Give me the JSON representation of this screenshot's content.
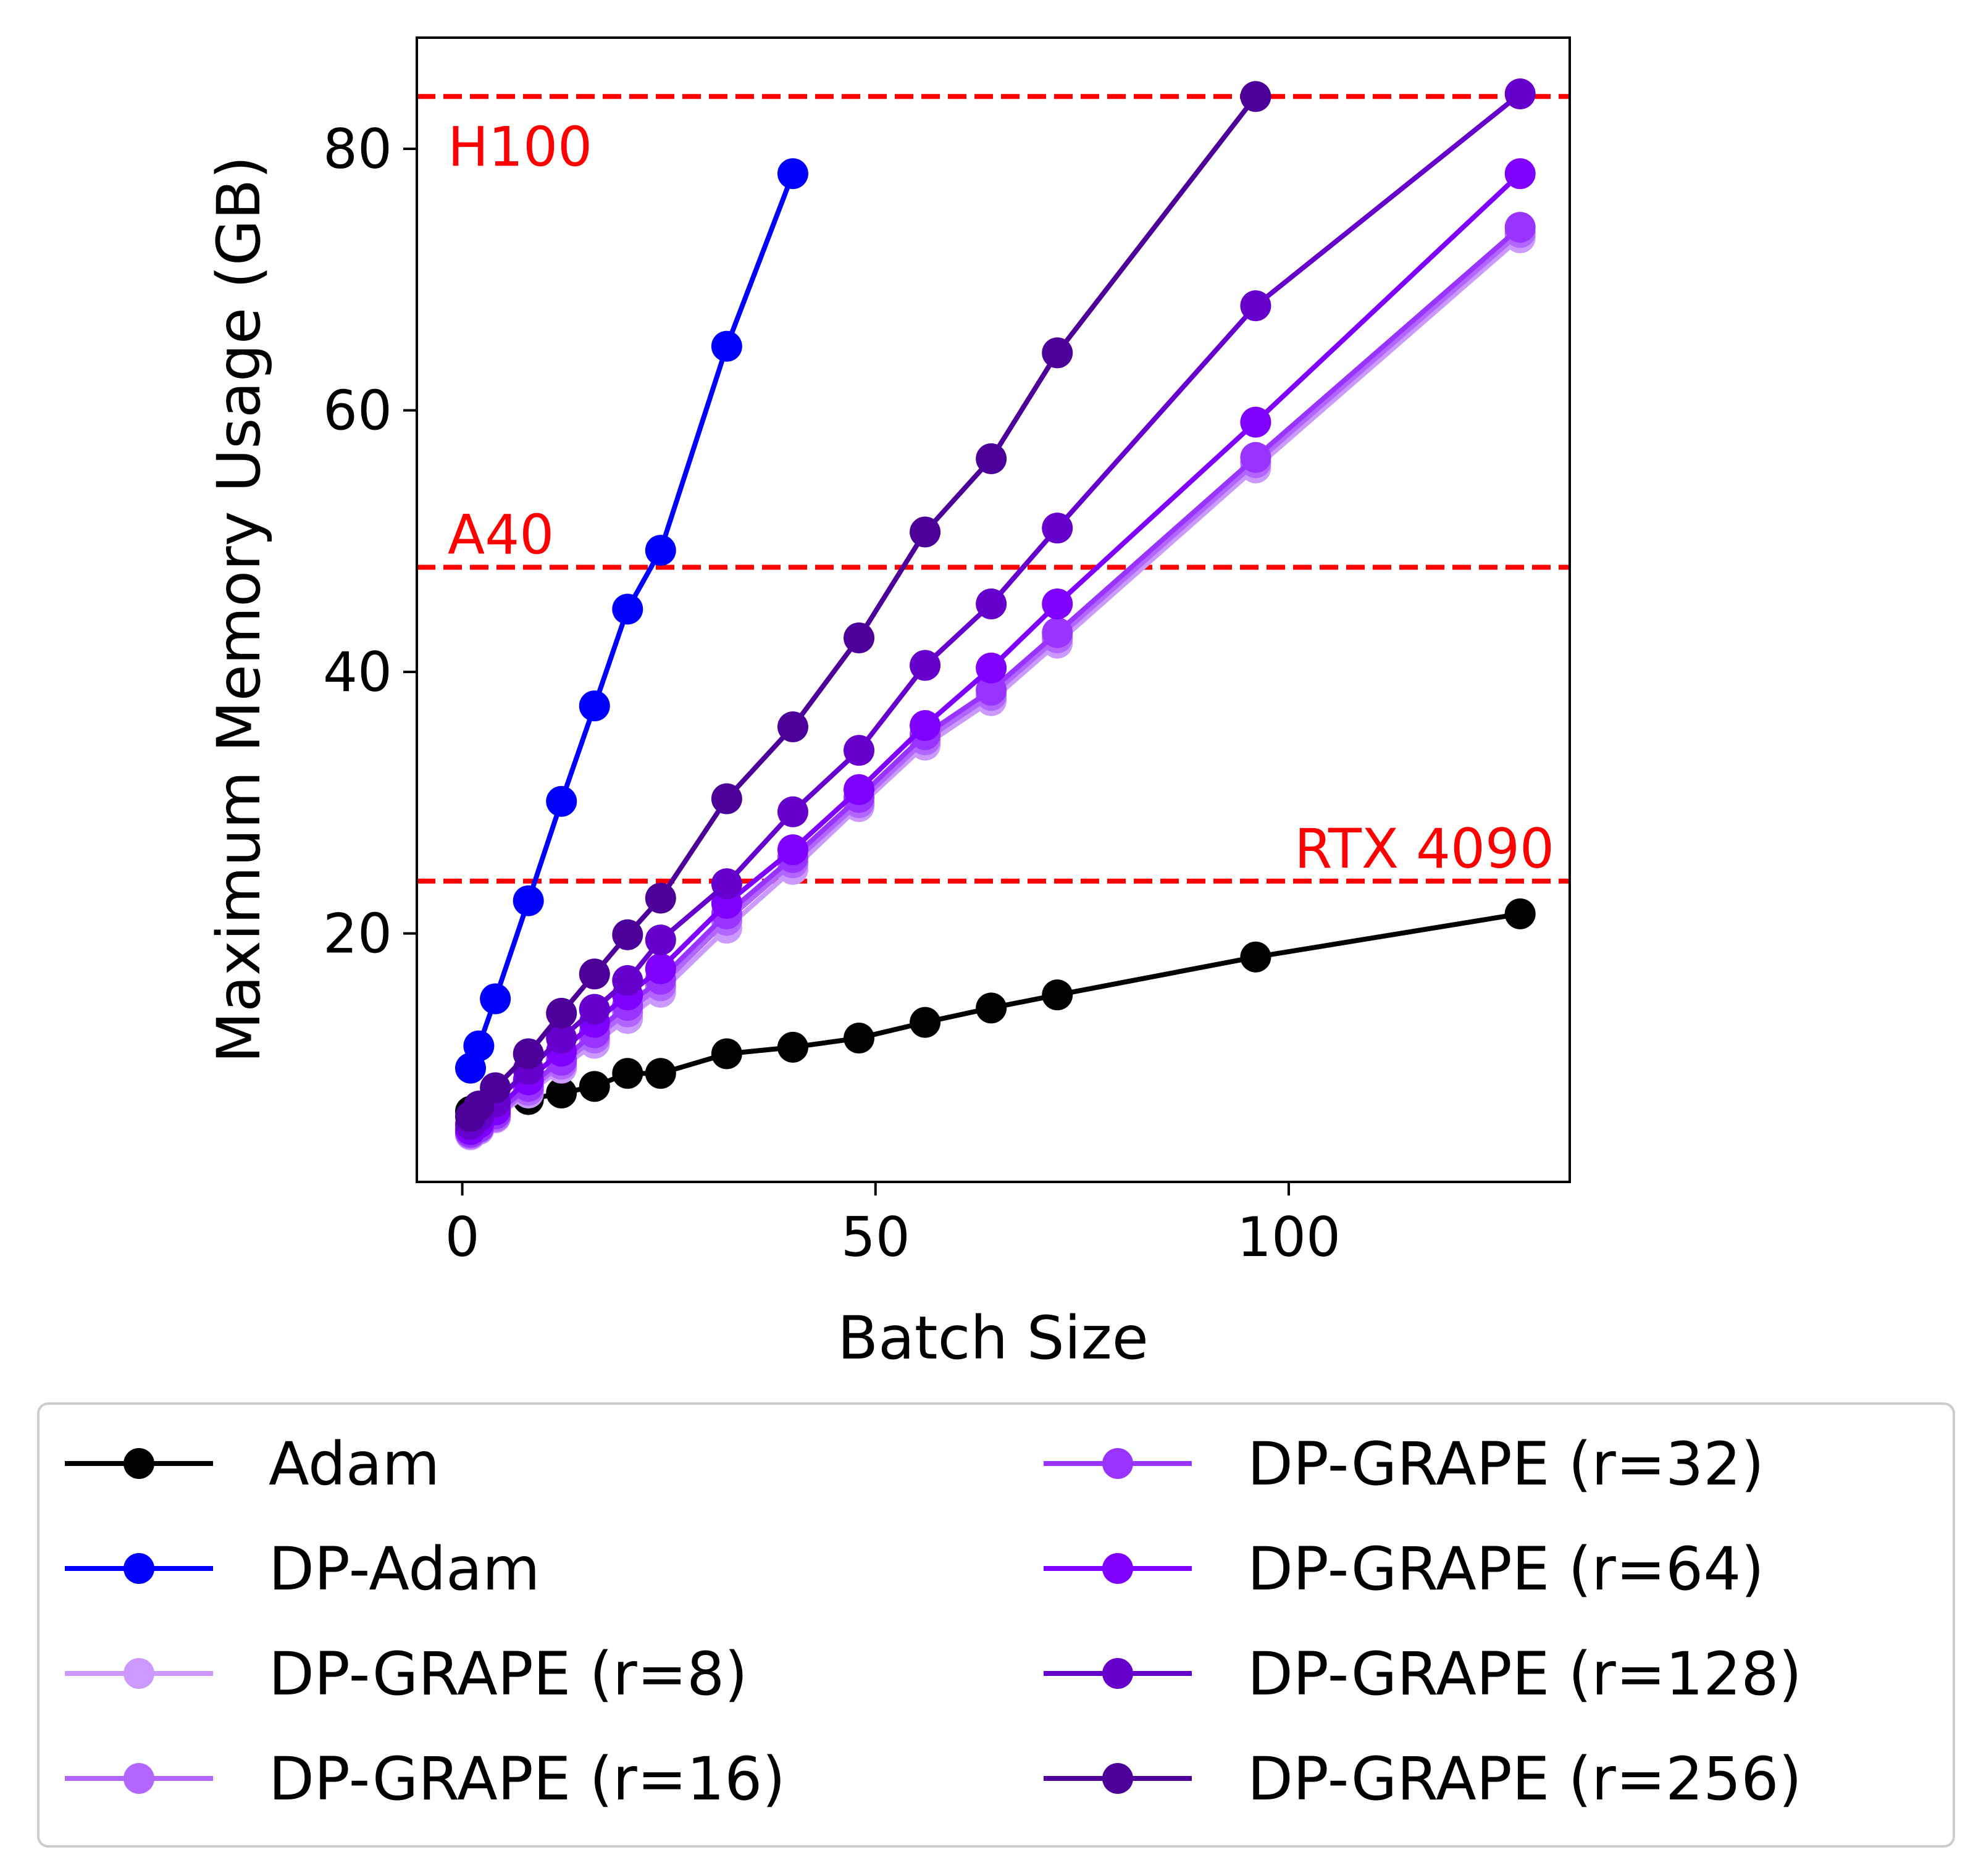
{
  "chart_data": {
    "type": "line",
    "xlabel": "Batch Size",
    "ylabel": "Maximum Memory Usage (GB)",
    "xlim": [
      -5.5,
      134
    ],
    "ylim": [
      1,
      88.5
    ],
    "xticks": [
      0,
      50,
      100
    ],
    "yticks": [
      20,
      40,
      60,
      80
    ],
    "grid": false,
    "legend_position": "below",
    "reference_lines": [
      {
        "label": "H100",
        "y": 84,
        "color": "#ff0000",
        "label_anchor": "left-below"
      },
      {
        "label": "A40",
        "y": 48,
        "color": "#ff0000",
        "label_anchor": "left-above"
      },
      {
        "label": "RTX 4090",
        "y": 24,
        "color": "#ff0000",
        "label_anchor": "right-above"
      }
    ],
    "series": [
      {
        "name": "Adam",
        "color": "#000000",
        "x": [
          1,
          2,
          4,
          8,
          12,
          16,
          20,
          24,
          32,
          40,
          48,
          56,
          64,
          72,
          96,
          128
        ],
        "y": [
          6.4,
          6.6,
          7.0,
          7.3,
          7.8,
          8.3,
          9.3,
          9.3,
          10.8,
          11.3,
          12.0,
          13.2,
          14.3,
          15.3,
          18.2,
          21.5
        ]
      },
      {
        "name": "DP-Adam",
        "color": "#0000ff",
        "x": [
          1,
          2,
          4,
          8,
          12,
          16,
          20,
          24,
          32,
          40
        ],
        "y": [
          9.7,
          11.4,
          15.0,
          22.5,
          30.1,
          37.4,
          44.8,
          49.3,
          64.9,
          78.1
        ]
      },
      {
        "name": "DP-GRAPE (r=8)",
        "color": "#cc99ff",
        "x": [
          1,
          2,
          4,
          8,
          12,
          16,
          20,
          24,
          32,
          40,
          48,
          56,
          64,
          72,
          96,
          128
        ],
        "y": [
          4.6,
          5.0,
          5.9,
          7.8,
          9.7,
          11.6,
          13.5,
          15.5,
          20.4,
          24.9,
          29.7,
          34.4,
          37.8,
          42.2,
          55.6,
          73.2
        ]
      },
      {
        "name": "DP-GRAPE (r=16)",
        "color": "#b266ff",
        "x": [
          1,
          2,
          4,
          8,
          12,
          16,
          20,
          24,
          32,
          40,
          48,
          56,
          64,
          72,
          96,
          128
        ],
        "y": [
          4.7,
          5.1,
          6.0,
          8.0,
          10.0,
          12.0,
          14.0,
          16.0,
          21.0,
          25.4,
          30.0,
          34.8,
          38.2,
          42.6,
          56.0,
          73.6
        ]
      },
      {
        "name": "DP-GRAPE (r=32)",
        "color": "#9933ff",
        "x": [
          1,
          2,
          4,
          8,
          12,
          16,
          20,
          24,
          32,
          40,
          48,
          56,
          64,
          72,
          96,
          128
        ],
        "y": [
          4.8,
          5.2,
          6.2,
          8.3,
          10.3,
          12.4,
          14.5,
          16.5,
          21.5,
          25.8,
          30.4,
          35.2,
          38.6,
          43.0,
          56.4,
          74.0
        ]
      },
      {
        "name": "DP-GRAPE (r=64)",
        "color": "#7f00ff",
        "x": [
          1,
          2,
          4,
          8,
          12,
          16,
          20,
          24,
          32,
          40,
          48,
          56,
          64,
          72,
          96,
          128
        ],
        "y": [
          5.0,
          5.5,
          6.5,
          8.8,
          11.0,
          13.2,
          15.3,
          17.3,
          22.3,
          26.4,
          31.0,
          35.9,
          40.3,
          45.2,
          59.1,
          78.1
        ]
      },
      {
        "name": "DP-GRAPE (r=128)",
        "color": "#6600cc",
        "x": [
          1,
          2,
          4,
          8,
          12,
          16,
          20,
          24,
          32,
          40,
          48,
          56,
          64,
          72,
          96,
          128
        ],
        "y": [
          5.4,
          6.0,
          7.1,
          9.6,
          12.0,
          14.2,
          16.4,
          19.5,
          23.8,
          29.3,
          34.0,
          40.5,
          45.2,
          51.0,
          68.0,
          84.2
        ]
      },
      {
        "name": "DP-GRAPE (r=256)",
        "color": "#4c0099",
        "x": [
          1,
          2,
          4,
          8,
          12,
          16,
          20,
          24,
          32,
          40,
          48,
          56,
          64,
          72,
          96
        ],
        "y": [
          6.0,
          6.8,
          8.2,
          10.8,
          13.9,
          16.9,
          19.9,
          22.7,
          30.3,
          35.8,
          42.6,
          50.7,
          56.3,
          64.4,
          84.0
        ]
      }
    ]
  }
}
